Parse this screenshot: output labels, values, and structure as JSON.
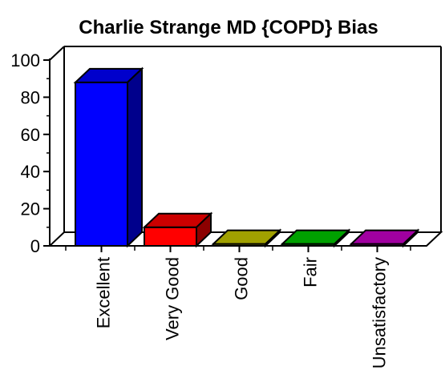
{
  "chart_data": {
    "type": "bar",
    "title": "Charlie Strange MD {COPD} Bias",
    "categories": [
      "Excellent",
      "Very Good",
      "Good",
      "Fair",
      "Unsatisfactory"
    ],
    "values": [
      88,
      10,
      1,
      1,
      1
    ],
    "colors": [
      "#0000ff",
      "#ff0000",
      "#c8c800",
      "#00c800",
      "#c800c8"
    ],
    "ylim": [
      0,
      100
    ],
    "yticks": [
      0,
      20,
      40,
      60,
      80,
      100
    ],
    "xlabel": "",
    "ylabel": "",
    "grid": false,
    "legend": "none",
    "style": "3d"
  }
}
